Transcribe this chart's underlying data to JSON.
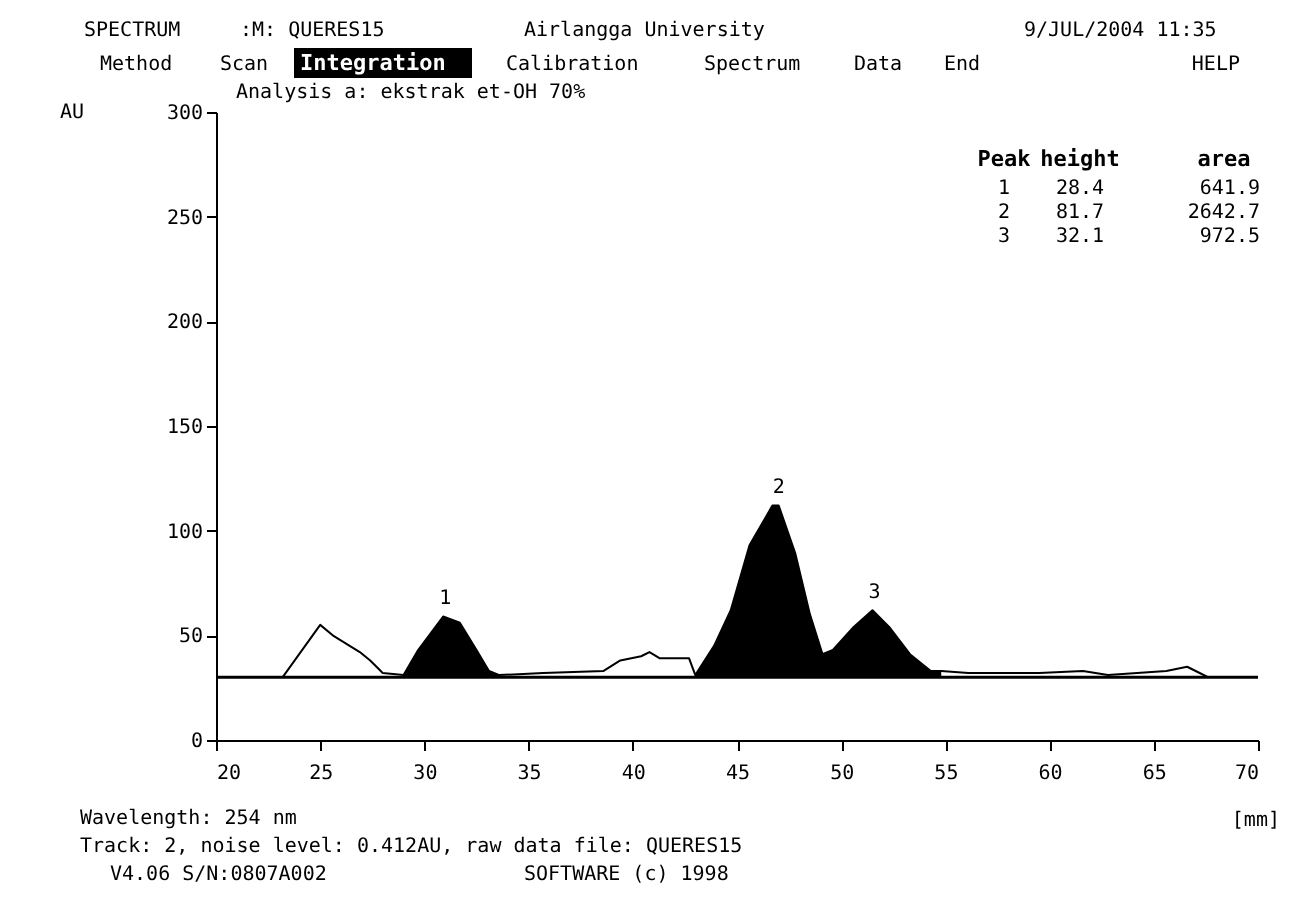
{
  "chart_data": {
    "type": "line",
    "title": "Analysis a: ekstrak et-OH 70%",
    "ylabel": "AU",
    "xlabel": "[mm]",
    "x": [
      23.2,
      25.0,
      25.6,
      26.9,
      27.4,
      28.0,
      29.0,
      29.7,
      30.3,
      30.9,
      31.7,
      32.5,
      33.1,
      33.6,
      35.7,
      38.6,
      39.4,
      40.4,
      40.8,
      41.3,
      42.7,
      43.0,
      43.9,
      44.7,
      45.6,
      46.7,
      47.0,
      47.8,
      48.5,
      49.1,
      49.6,
      50.6,
      51.5,
      52.3,
      53.3,
      54.3,
      54.8,
      56.1,
      57.6,
      59.5,
      61.6,
      62.8,
      65.6,
      66.6,
      67.2,
      67.6
    ],
    "series": [
      {
        "color": "#000000",
        "values": [
          30,
          55,
          50,
          42,
          38,
          32,
          31,
          43,
          51,
          59,
          56,
          43,
          33,
          31,
          32,
          33,
          38,
          40,
          42,
          39,
          39,
          31,
          45,
          62,
          93,
          112,
          112,
          89,
          60,
          41,
          43,
          54,
          62,
          54,
          41,
          33,
          33,
          32,
          32,
          32,
          33,
          31,
          33,
          35,
          32,
          30
        ]
      },
      {
        "type": "area",
        "color": "#000000",
        "x": [
          29.0,
          29.7,
          30.3,
          30.9,
          31.7,
          32.5,
          33.1,
          33.6
        ],
        "values": [
          31,
          43,
          51,
          59,
          56,
          43,
          33,
          31
        ]
      },
      {
        "type": "area",
        "color": "#000000",
        "x": [
          43.0,
          43.9,
          44.7,
          45.6,
          46.7,
          47.0,
          47.8,
          48.5,
          49.1,
          49.6,
          50.6,
          51.5,
          52.3,
          53.3,
          54.3,
          54.8
        ],
        "values": [
          31,
          45,
          62,
          93,
          112,
          112,
          89,
          60,
          41,
          43,
          54,
          62,
          54,
          41,
          33,
          33
        ]
      }
    ],
    "ref_lines": [
      {
        "axis": "y",
        "value": 30,
        "color": "#000000"
      }
    ],
    "xlim": [
      20,
      70
    ],
    "xticks": [
      20,
      25,
      30,
      35,
      40,
      45,
      50,
      55,
      60,
      65,
      70
    ],
    "ylim": [
      0,
      300
    ],
    "yticks": [
      0,
      50,
      100,
      150,
      200,
      250,
      300
    ],
    "grid": false,
    "marker": "none",
    "line_style": "solid",
    "annotations": [
      "SPECTRUM",
      ":M: QUERES15",
      "Airlangga University",
      "9/JUL/2004 11:35",
      "Method",
      "Scan",
      "Integration",
      "Calibration",
      "Spectrum",
      "Data",
      "End",
      "HELP",
      "Peak",
      "height",
      "area",
      "1",
      "28.4",
      "641.9",
      "2",
      "81.7",
      "2642.7",
      "3",
      "32.1",
      "972.5",
      "Wavelength: 254 nm",
      "Track:  2, noise level:   0.412AU, raw data file: QUERES15",
      "V4.06 S/N:0807A002",
      "SOFTWARE (c) 1998",
      {
        "text": "1",
        "x": 31.0,
        "y": 63
      },
      {
        "text": "2",
        "x": 47.0,
        "y": 116
      },
      {
        "text": "3",
        "x": 51.6,
        "y": 66
      }
    ]
  }
}
